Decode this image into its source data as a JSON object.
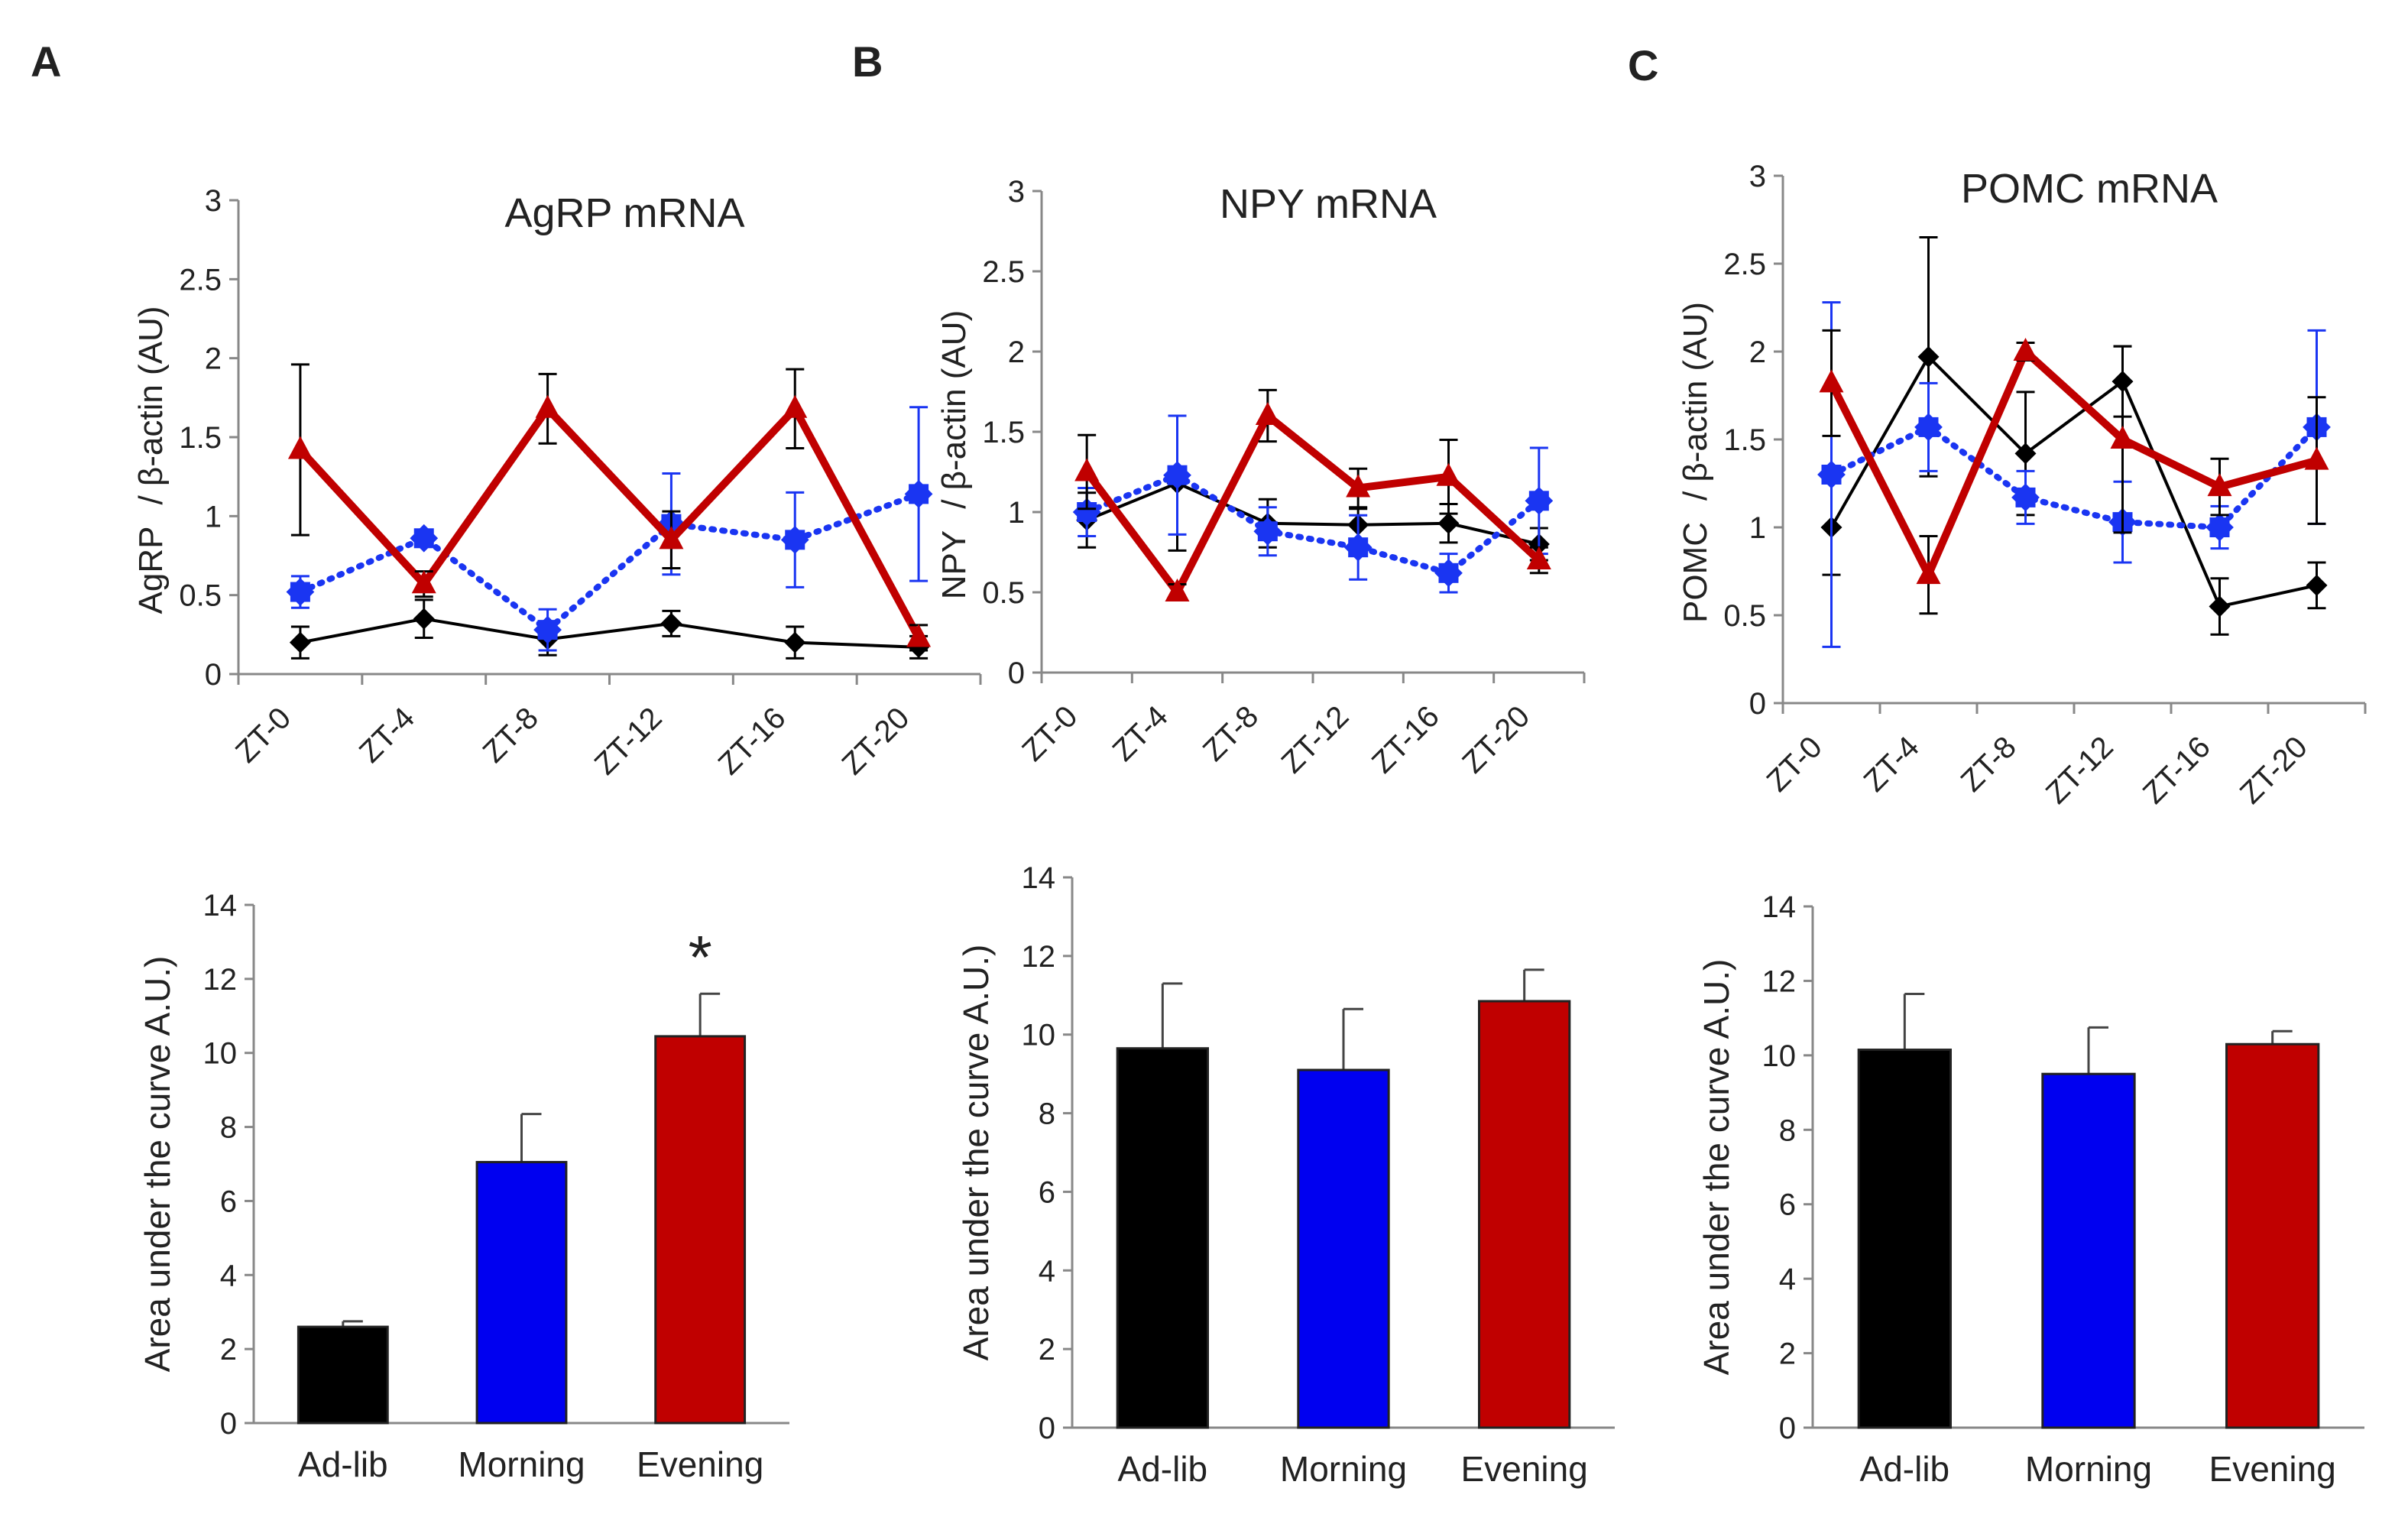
{
  "panels": [
    {
      "letter": "A",
      "line": {
        "title": "AgRP mRNA",
        "ylabel_gene": "AgRP",
        "ylabel_rest": "/ β‐actin (AU)",
        "categories": [
          "ZT-0",
          "ZT-4",
          "ZT-8",
          "ZT-12",
          "ZT-16",
          "ZT-20"
        ],
        "ylim": [
          0,
          3
        ],
        "yticks": [
          "0",
          "0.5",
          "1",
          "1.5",
          "2",
          "2.5",
          "3"
        ],
        "series": [
          {
            "name": "Ad-lib",
            "color": "#000000",
            "values": [
              0.2,
              0.35,
              0.22,
              0.32,
              0.2,
              0.17
            ],
            "errors": [
              0.1,
              0.12,
              0.1,
              0.08,
              0.1,
              0.07
            ]
          },
          {
            "name": "Morning",
            "color": "#1a35f2",
            "values": [
              0.52,
              0.86,
              0.28,
              0.95,
              0.85,
              1.14
            ],
            "errors": [
              0.1,
              0.05,
              0.13,
              0.32,
              0.3,
              0.55
            ]
          },
          {
            "name": "Evening",
            "color": "#c00000",
            "values": [
              1.42,
              0.57,
              1.68,
              0.85,
              1.68,
              0.23
            ],
            "errors": [
              0.54,
              0.08,
              0.22,
              0.18,
              0.25,
              0.08
            ]
          }
        ]
      },
      "bar": {
        "ylabel": "Area under the curve A.U.)",
        "categories": [
          "Ad-lib",
          "Morning",
          "Evening"
        ],
        "colors": [
          "#000000",
          "#0000f0",
          "#c00000"
        ],
        "values": [
          2.6,
          7.05,
          10.45
        ],
        "errors": [
          0.15,
          1.3,
          1.15
        ],
        "ylim": [
          0,
          14
        ],
        "yticks": [
          "0",
          "2",
          "4",
          "6",
          "8",
          "10",
          "12",
          "14"
        ],
        "annotation": "*"
      }
    },
    {
      "letter": "B",
      "line": {
        "title": "NPY mRNA",
        "ylabel_gene": "NPY",
        "ylabel_rest": "/ β‐actin (AU)",
        "categories": [
          "ZT-0",
          "ZT-4",
          "ZT-8",
          "ZT-12",
          "ZT-16",
          "ZT-20"
        ],
        "ylim": [
          0,
          3
        ],
        "yticks": [
          "0",
          "0.5",
          "1",
          "1.5",
          "2",
          "2.5",
          "3"
        ],
        "series": [
          {
            "name": "Ad-lib",
            "color": "#000000",
            "values": [
              0.95,
              1.18,
              0.93,
              0.92,
              0.93,
              0.8
            ],
            "errors": [
              0.17,
              0.42,
              0.15,
              0.1,
              0.12,
              0.1
            ]
          },
          {
            "name": "Morning",
            "color": "#1a35f2",
            "values": [
              1.0,
              1.23,
              0.88,
              0.78,
              0.62,
              1.07
            ],
            "errors": [
              0.15,
              0.37,
              0.15,
              0.2,
              0.12,
              0.33
            ]
          },
          {
            "name": "Evening",
            "color": "#c00000",
            "values": [
              1.25,
              0.5,
              1.6,
              1.15,
              1.22,
              0.7
            ],
            "errors": [
              0.23,
              0.05,
              0.16,
              0.12,
              0.23,
              0.08
            ]
          }
        ]
      },
      "bar": {
        "ylabel": "Area under the curve A.U.)",
        "categories": [
          "Ad-lib",
          "Morning",
          "Evening"
        ],
        "colors": [
          "#000000",
          "#0000f0",
          "#c00000"
        ],
        "values": [
          9.65,
          9.1,
          10.85
        ],
        "errors": [
          1.65,
          1.55,
          0.8
        ],
        "ylim": [
          0,
          14
        ],
        "yticks": [
          "0",
          "2",
          "4",
          "6",
          "8",
          "10",
          "12",
          "14"
        ],
        "annotation": ""
      }
    },
    {
      "letter": "C",
      "line": {
        "title": "POMC mRNA",
        "ylabel_gene": "POMC",
        "ylabel_rest": "/ β‐actin (AU)",
        "categories": [
          "ZT-0",
          "ZT-4",
          "ZT-8",
          "ZT-12",
          "ZT-16",
          "ZT-20"
        ],
        "ylim": [
          0,
          3
        ],
        "yticks": [
          "0",
          "0.5",
          "1",
          "1.5",
          "2",
          "2.5",
          "3"
        ],
        "series": [
          {
            "name": "Ad-lib",
            "color": "#000000",
            "values": [
              1.0,
              1.97,
              1.42,
              1.83,
              0.55,
              0.67
            ],
            "errors": [
              0.27,
              0.68,
              0.35,
              0.2,
              0.16,
              0.13
            ]
          },
          {
            "name": "Morning",
            "color": "#1a35f2",
            "values": [
              1.3,
              1.57,
              1.17,
              1.03,
              1.0,
              1.57
            ],
            "errors": [
              0.98,
              0.25,
              0.15,
              0.23,
              0.12,
              0.55
            ]
          },
          {
            "name": "Evening",
            "color": "#c00000",
            "values": [
              1.82,
              0.73,
              2.0,
              1.5,
              1.23,
              1.38
            ],
            "errors": [
              0.3,
              0.22,
              0.05,
              0.53,
              0.16,
              0.36
            ]
          }
        ]
      },
      "bar": {
        "ylabel": "Area under the curve A.U.)",
        "categories": [
          "Ad-lib",
          "Morning",
          "Evening"
        ],
        "colors": [
          "#000000",
          "#0000f0",
          "#c00000"
        ],
        "values": [
          10.15,
          9.5,
          10.3
        ],
        "errors": [
          1.5,
          1.25,
          0.35
        ],
        "ylim": [
          0,
          14
        ],
        "yticks": [
          "0",
          "2",
          "4",
          "6",
          "8",
          "10",
          "12",
          "14"
        ],
        "annotation": ""
      }
    }
  ]
}
